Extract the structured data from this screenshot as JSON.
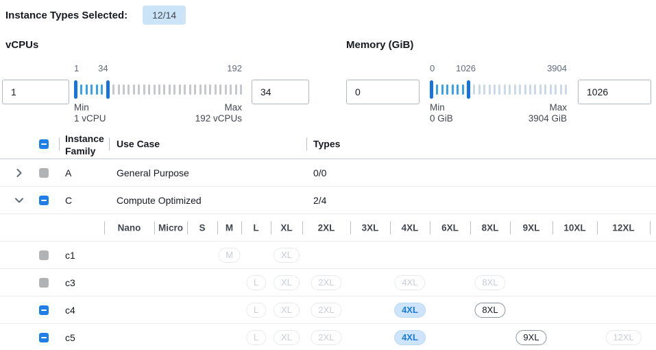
{
  "header": {
    "label": "Instance Types Selected:",
    "badge": "12/14"
  },
  "filters": {
    "vcpus": {
      "title": "vCPUs",
      "min": 1,
      "max": 192,
      "selected_min": 1,
      "selected_max": 34,
      "min_input_value": "1",
      "max_input_value": "34",
      "scale_labels": [
        "1",
        "34",
        "192"
      ],
      "min_label": "Min",
      "max_label": "Max",
      "min_sublabel": "1 vCPU",
      "max_sublabel": "192 vCPUs",
      "inactive_tick_color": "#c5c7cb"
    },
    "memory": {
      "title": "Memory (GiB)",
      "min": 0,
      "max": 3904,
      "selected_min": 0,
      "selected_max": 1026,
      "min_input_value": "0",
      "max_input_value": "1026",
      "scale_labels": [
        "0",
        "1026",
        "3904"
      ],
      "min_label": "Min",
      "max_label": "Max",
      "min_sublabel": "0 GiB",
      "max_sublabel": "3904 GiB",
      "inactive_tick_color": "#ccd9e9"
    }
  },
  "table": {
    "header": {
      "family": "Instance Family",
      "use_case": "Use Case",
      "types": "Types"
    },
    "family_rows": [
      {
        "expanded": false,
        "checkbox": "disabled",
        "family": "A",
        "use_case": "General Purpose",
        "types": "0/0"
      },
      {
        "expanded": true,
        "checkbox": "indeterminate",
        "family": "C",
        "use_case": "Compute Optimized",
        "types": "2/4"
      }
    ],
    "size_columns": [
      "Nano",
      "Micro",
      "S",
      "M",
      "L",
      "XL",
      "2XL",
      "3XL",
      "4XL",
      "6XL",
      "8XL",
      "9XL",
      "10XL",
      "12XL"
    ],
    "instance_rows": [
      {
        "checkbox": "disabled",
        "name": "c1",
        "pills": [
          {
            "size": "M",
            "state": "disabled"
          },
          {
            "size": "XL",
            "state": "disabled"
          }
        ]
      },
      {
        "checkbox": "disabled",
        "name": "c3",
        "pills": [
          {
            "size": "L",
            "state": "disabled"
          },
          {
            "size": "XL",
            "state": "disabled"
          },
          {
            "size": "2XL",
            "state": "disabled"
          },
          {
            "size": "4XL",
            "state": "disabled"
          },
          {
            "size": "8XL",
            "state": "disabled"
          }
        ]
      },
      {
        "checkbox": "indeterminate",
        "name": "c4",
        "pills": [
          {
            "size": "L",
            "state": "disabled"
          },
          {
            "size": "XL",
            "state": "disabled"
          },
          {
            "size": "2XL",
            "state": "disabled"
          },
          {
            "size": "4XL",
            "state": "selected"
          },
          {
            "size": "8XL",
            "state": "enabled"
          }
        ]
      },
      {
        "checkbox": "indeterminate",
        "name": "c5",
        "pills": [
          {
            "size": "L",
            "state": "disabled"
          },
          {
            "size": "XL",
            "state": "disabled"
          },
          {
            "size": "2XL",
            "state": "disabled"
          },
          {
            "size": "4XL",
            "state": "selected"
          },
          {
            "size": "9XL",
            "state": "enabled"
          },
          {
            "size": "12XL",
            "state": "disabled"
          }
        ]
      }
    ]
  },
  "colors": {
    "accent_blue": "#1f7fe8",
    "badge_bg": "#cce4f8",
    "selected_pill_bg": "#cde4fa",
    "selected_pill_text": "#1b7ae2",
    "slider_handle": "#1673df",
    "slider_active_tick": "#36a2ee"
  }
}
